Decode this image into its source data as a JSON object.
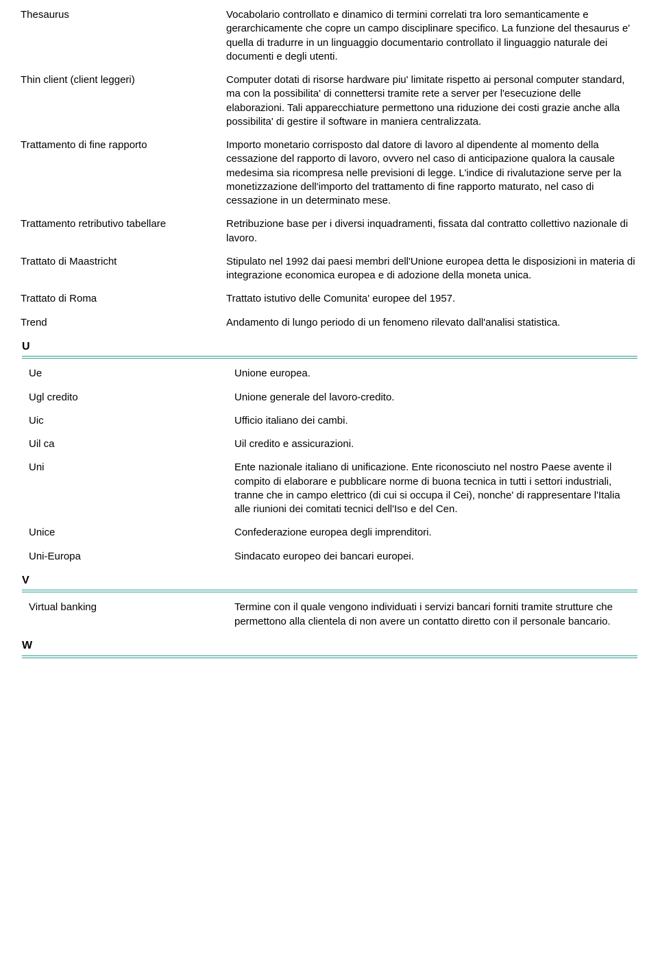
{
  "entries": [
    {
      "term": "Thesaurus",
      "definition": "Vocabolario controllato e dinamico di termini correlati tra loro semanticamente e gerarchicamente che copre un campo disciplinare specifico. La funzione del thesaurus e' quella di tradurre in un linguaggio documentario controllato il linguaggio naturale dei documenti e degli utenti."
    },
    {
      "term": "Thin client (client leggeri)",
      "definition": "Computer dotati di risorse hardware piu' limitate rispetto ai personal computer standard, ma con la possibilita' di connettersi tramite rete a server per l'esecuzione delle elaborazioni. Tali apparecchiature permettono una riduzione dei costi grazie anche alla possibilita' di gestire il software in maniera centralizzata."
    },
    {
      "term": "Trattamento di fine rapporto",
      "definition": "Importo monetario corrisposto dal datore di lavoro al dipendente al momento della cessazione del rapporto di lavoro, ovvero nel caso di anticipazione qualora la causale medesima sia ricompresa nelle previsioni di legge. L'indice di rivalutazione serve per la monetizzazione dell'importo del trattamento di fine rapporto maturato, nel caso di cessazione in un determinato mese."
    },
    {
      "term": "Trattamento retributivo tabellare",
      "definition": "Retribuzione base per i diversi inquadramenti, fissata dal contratto collettivo nazionale di lavoro."
    },
    {
      "term": "Trattato di Maastricht",
      "definition": "Stipulato nel 1992 dai paesi membri dell'Unione europea detta le disposizioni in materia di integrazione economica europea e di adozione della moneta unica."
    },
    {
      "term": "Trattato di Roma",
      "definition": "Trattato istutivo delle Comunita' europee del 1957."
    },
    {
      "term": "Trend",
      "definition": "Andamento di lungo periodo di un fenomeno rilevato dall'analisi statistica."
    }
  ],
  "sectionU": {
    "letter": "U",
    "entries": [
      {
        "term": "Ue",
        "definition": "Unione europea."
      },
      {
        "term": "Ugl credito",
        "definition": "Unione generale del lavoro-credito."
      },
      {
        "term": "Uic",
        "definition": "Ufficio italiano dei cambi."
      },
      {
        "term": "Uil ca",
        "definition": "Uil credito e assicurazioni."
      },
      {
        "term": "Uni",
        "definition": "Ente nazionale italiano di unificazione. Ente riconosciuto nel nostro Paese avente il compito di elaborare e pubblicare norme di buona tecnica in tutti i settori industriali, tranne che in campo elettrico (di cui si occupa il Cei), nonche' di rappresentare l'Italia alle riunioni dei comitati tecnici dell'Iso e del Cen."
      },
      {
        "term": "Unice",
        "definition": "Confederazione europea degli imprenditori."
      },
      {
        "term": "Uni-Europa",
        "definition": "Sindacato europeo dei bancari europei."
      }
    ]
  },
  "sectionV": {
    "letter": "V",
    "entries": [
      {
        "term": "Virtual banking",
        "definition": "Termine con il quale vengono individuati i servizi bancari forniti tramite strutture che permettono alla clientela di non avere un contatto diretto con il personale bancario."
      }
    ]
  },
  "sectionW": {
    "letter": "W"
  }
}
